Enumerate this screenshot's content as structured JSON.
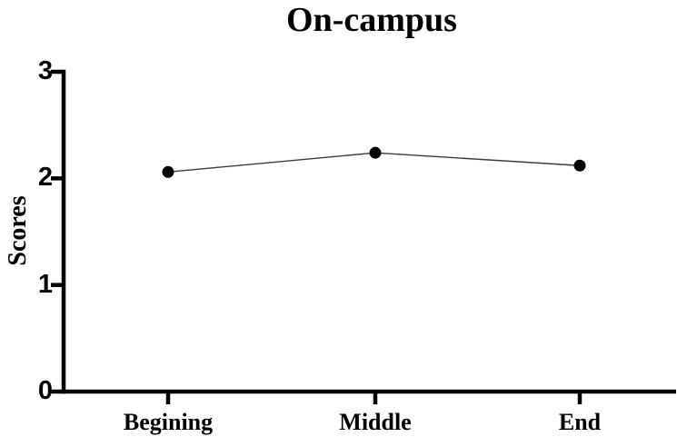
{
  "chart_data": {
    "type": "line",
    "title": "On-campus",
    "categories": [
      "Begining",
      "Middle",
      "End"
    ],
    "series": [
      {
        "name": "On-campus",
        "values": [
          2.06,
          2.24,
          2.12
        ]
      }
    ],
    "xlabel": "",
    "ylabel": "Scores",
    "ylim": [
      0,
      3
    ],
    "y_ticks": [
      0,
      1,
      2,
      3
    ],
    "grid": false,
    "legend_position": "none",
    "marker": "filled-circle",
    "colors": {
      "axis": "#000000",
      "line": "#3d3d3d",
      "marker": "#000000",
      "text": "#000000",
      "background": "#ffffff"
    }
  }
}
